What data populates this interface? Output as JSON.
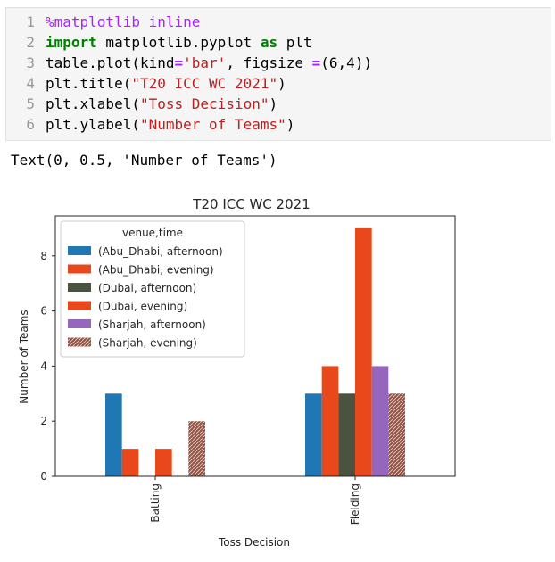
{
  "code_cell": {
    "lines": [
      {
        "num": "1",
        "parts": [
          {
            "t": "%matplotlib inline",
            "c": "mg"
          }
        ]
      },
      {
        "num": "2",
        "parts": [
          {
            "t": "import",
            "c": "kw"
          },
          {
            "t": " matplotlib.pyplot ",
            "c": ""
          },
          {
            "t": "as",
            "c": "kw"
          },
          {
            "t": " plt",
            "c": ""
          }
        ]
      },
      {
        "num": "3",
        "parts": [
          {
            "t": "table.plot(kind",
            "c": ""
          },
          {
            "t": "=",
            "c": "op"
          },
          {
            "t": "'bar'",
            "c": "str"
          },
          {
            "t": ", figsize ",
            "c": ""
          },
          {
            "t": "=",
            "c": "op"
          },
          {
            "t": "(6,4))",
            "c": ""
          }
        ]
      },
      {
        "num": "4",
        "parts": [
          {
            "t": "plt.title(",
            "c": ""
          },
          {
            "t": "\"T20 ICC WC 2021\"",
            "c": "str"
          },
          {
            "t": ")",
            "c": ""
          }
        ]
      },
      {
        "num": "5",
        "parts": [
          {
            "t": "plt.xlabel(",
            "c": ""
          },
          {
            "t": "\"Toss Decision\"",
            "c": "str"
          },
          {
            "t": ")",
            "c": ""
          }
        ]
      },
      {
        "num": "6",
        "parts": [
          {
            "t": "plt.ylabel(",
            "c": ""
          },
          {
            "t": "\"Number of Teams\"",
            "c": "str"
          },
          {
            "t": ")",
            "c": ""
          }
        ]
      }
    ]
  },
  "output_text": "Text(0, 0.5, 'Number of Teams')",
  "chart_data": {
    "type": "bar",
    "title": "T20 ICC WC 2021",
    "xlabel": "Toss Decision",
    "ylabel": "Number of Teams",
    "categories": [
      "Batting",
      "Fielding"
    ],
    "ylim": [
      0,
      9.45
    ],
    "yticks": [
      0,
      2,
      4,
      6,
      8
    ],
    "legend_title": "venue,time",
    "legend_position": "upper left",
    "series": [
      {
        "name": "(Abu_Dhabi, afternoon)",
        "color": "#1f77b4",
        "values": [
          3,
          3
        ]
      },
      {
        "name": "(Abu_Dhabi, evening)",
        "color": "#e8481c",
        "values": [
          1,
          4
        ]
      },
      {
        "name": "(Dubai, afternoon)",
        "color": "#4a5240",
        "values": [
          0,
          3
        ]
      },
      {
        "name": "(Dubai, evening)",
        "color": "#e8481c",
        "values": [
          1,
          9
        ]
      },
      {
        "name": "(Sharjah, afternoon)",
        "color": "#9467bd",
        "values": [
          0,
          4
        ]
      },
      {
        "name": "(Sharjah, evening)",
        "color": "#8c564b",
        "hatch": true,
        "values": [
          2,
          3
        ]
      }
    ]
  }
}
